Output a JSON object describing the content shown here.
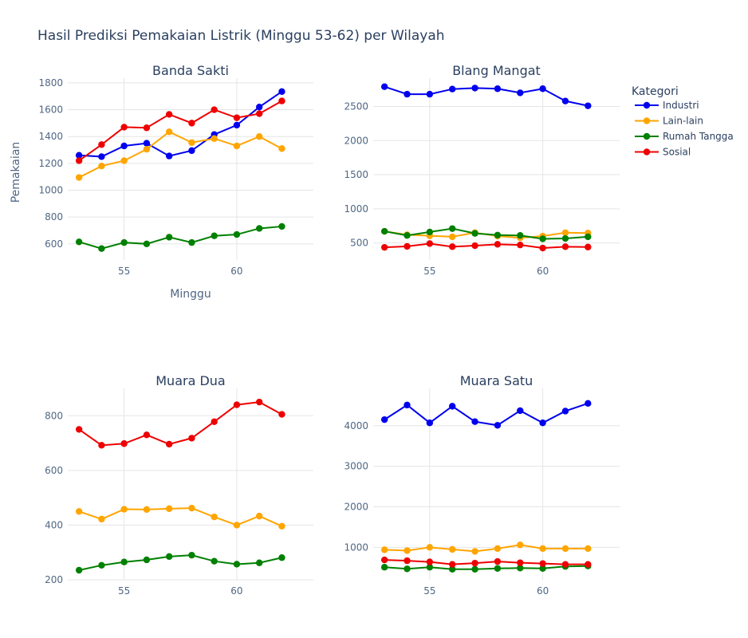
{
  "chart_data": {
    "type": "line",
    "title": "Hasil Prediksi Pemakaian Listrik (Minggu 53-62) per Wilayah",
    "xlabel": "Minggu",
    "ylabel": "Pemakaian",
    "legend": {
      "title": "Kategori",
      "placement": "top-right",
      "entries": [
        "Industri",
        "Lain-lain",
        "Rumah Tangga",
        "Sosial"
      ]
    },
    "colors": {
      "Industri": "#0000ee",
      "Lain-lain": "#ffa500",
      "Rumah Tangga": "#008000",
      "Sosial": "#ee0000"
    },
    "x": [
      53,
      54,
      55,
      56,
      57,
      58,
      59,
      60,
      61,
      62
    ],
    "grid": true,
    "panels": [
      {
        "title": "Banda Sakti",
        "xlim": [
          52.5,
          63.4
        ],
        "ylim": [
          480,
          1835
        ],
        "xticks": [
          55,
          60
        ],
        "yticks": [
          600,
          800,
          1000,
          1200,
          1400,
          1600,
          1800
        ],
        "show_xlabel": true,
        "show_ylabel": true,
        "series": [
          {
            "name": "Industri",
            "values": [
              1260,
              1250,
              1330,
              1350,
              1255,
              1295,
              1415,
              1485,
              1620,
              1735
            ]
          },
          {
            "name": "Lain-lain",
            "values": [
              1095,
              1180,
              1220,
              1305,
              1435,
              1355,
              1385,
              1330,
              1400,
              1310
            ]
          },
          {
            "name": "Rumah Tangga",
            "values": [
              615,
              565,
              610,
              600,
              650,
              610,
              660,
              670,
              715,
              730
            ]
          },
          {
            "name": "Sosial",
            "values": [
              1220,
              1340,
              1470,
              1465,
              1565,
              1500,
              1600,
              1540,
              1570,
              1665
            ]
          }
        ]
      },
      {
        "title": "Blang Mangat",
        "xlim": [
          52.5,
          63.4
        ],
        "ylim": [
          250,
          2915
        ],
        "xticks": [
          55,
          60
        ],
        "yticks": [
          500,
          1000,
          1500,
          2000,
          2500
        ],
        "show_xlabel": false,
        "show_ylabel": false,
        "series": [
          {
            "name": "Industri",
            "values": [
              2790,
              2680,
              2680,
              2755,
              2770,
              2760,
              2700,
              2760,
              2580,
              2510
            ]
          },
          {
            "name": "Lain-lain",
            "values": [
              670,
              620,
              605,
              590,
              650,
              600,
              575,
              600,
              650,
              645
            ]
          },
          {
            "name": "Rumah Tangga",
            "values": [
              670,
              610,
              660,
              710,
              640,
              615,
              610,
              560,
              565,
              590
            ]
          },
          {
            "name": "Sosial",
            "values": [
              435,
              450,
              490,
              445,
              460,
              480,
              470,
              425,
              445,
              440
            ]
          }
        ]
      },
      {
        "title": "Muara Dua",
        "xlim": [
          52.5,
          63.4
        ],
        "ylim": [
          200,
          900
        ],
        "xticks": [
          55,
          60
        ],
        "yticks": [
          200,
          400,
          600,
          800
        ],
        "show_xlabel": false,
        "show_ylabel": false,
        "series": [
          {
            "name": "Industri",
            "values": []
          },
          {
            "name": "Lain-lain",
            "values": [
              450,
              422,
              458,
              457,
              460,
              462,
              430,
              400,
              433,
              396
            ]
          },
          {
            "name": "Rumah Tangga",
            "values": [
              235,
              253,
              265,
              273,
              285,
              290,
              268,
              257,
              262,
              281
            ]
          },
          {
            "name": "Sosial",
            "values": [
              750,
              692,
              698,
              730,
              696,
              718,
              778,
              840,
              850,
              805
            ]
          }
        ]
      },
      {
        "title": "Muara Satu",
        "xlim": [
          52.5,
          63.4
        ],
        "ylim": [
          200,
          4920
        ],
        "xticks": [
          55,
          60
        ],
        "yticks": [
          1000,
          2000,
          3000,
          4000
        ],
        "show_xlabel": false,
        "show_ylabel": false,
        "series": [
          {
            "name": "Industri",
            "values": [
              4150,
              4510,
              4070,
              4480,
              4100,
              4010,
              4370,
              4070,
              4360,
              4550
            ]
          },
          {
            "name": "Lain-lain",
            "values": [
              940,
              920,
              1000,
              950,
              900,
              970,
              1060,
              970,
              970,
              970
            ]
          },
          {
            "name": "Rumah Tangga",
            "values": [
              510,
              470,
              510,
              460,
              460,
              480,
              490,
              480,
              530,
              540
            ]
          },
          {
            "name": "Sosial",
            "values": [
              690,
              670,
              640,
              580,
              610,
              650,
              620,
              600,
              580,
              580
            ]
          }
        ]
      }
    ]
  }
}
